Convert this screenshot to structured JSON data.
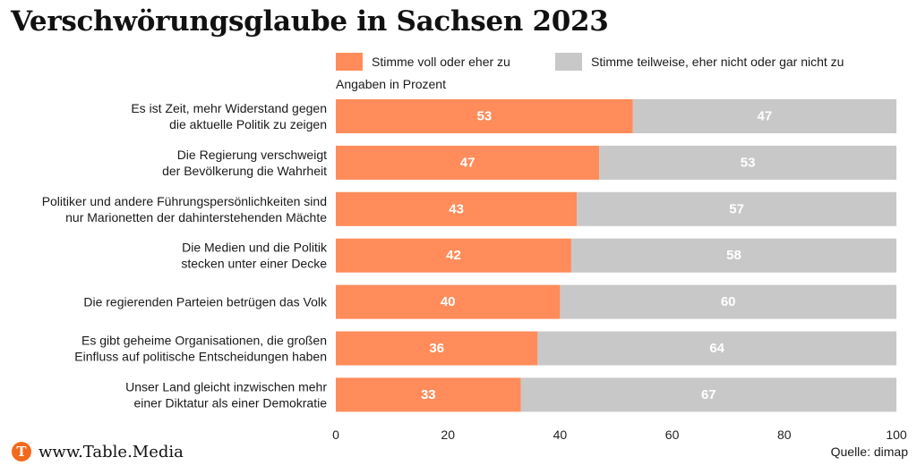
{
  "header": {
    "title": "Verschwörungsglaube in Sachsen 2023"
  },
  "legend": [
    {
      "label": "Stimme voll oder eher zu",
      "color": "#ff8c5a"
    },
    {
      "label": "Stimme teilweise, eher nicht oder gar nicht zu",
      "color": "#c8c8c8"
    }
  ],
  "unit_note": "Angaben in Prozent",
  "chart_data": {
    "type": "bar",
    "orientation": "horizontal",
    "stacked": true,
    "categories": [
      [
        "Es ist Zeit, mehr Widerstand gegen",
        "die aktuelle Politik zu zeigen"
      ],
      [
        "Die Regierung verschweigt",
        "der Bevölkerung die Wahrheit"
      ],
      [
        "Politiker und andere Führungspersönlichkeiten sind",
        "nur Marionetten der dahinterstehenden Mächte"
      ],
      [
        "Die Medien und die Politik",
        "stecken unter einer Decke"
      ],
      [
        "Die regierenden Parteien betrügen das Volk"
      ],
      [
        "Es gibt geheime Organisationen, die großen",
        "Einfluss auf politische Entscheidungen haben"
      ],
      [
        "Unser Land gleicht inzwischen mehr",
        "einer Diktatur als einer Demokratie"
      ]
    ],
    "series": [
      {
        "name": "Stimme voll oder eher zu",
        "color": "#ff8c5a",
        "values": [
          53,
          47,
          43,
          42,
          40,
          36,
          33
        ]
      },
      {
        "name": "Stimme teilweise, eher nicht oder gar nicht zu",
        "color": "#c8c8c8",
        "values": [
          47,
          53,
          57,
          58,
          60,
          64,
          67
        ]
      }
    ],
    "xlim": [
      0,
      100
    ],
    "xticks": [
      0,
      20,
      40,
      60,
      80,
      100
    ],
    "grid": false
  },
  "footer": {
    "logo_letter": "T",
    "logo_text": "www.Table.Media",
    "source": "Quelle: dimap"
  }
}
